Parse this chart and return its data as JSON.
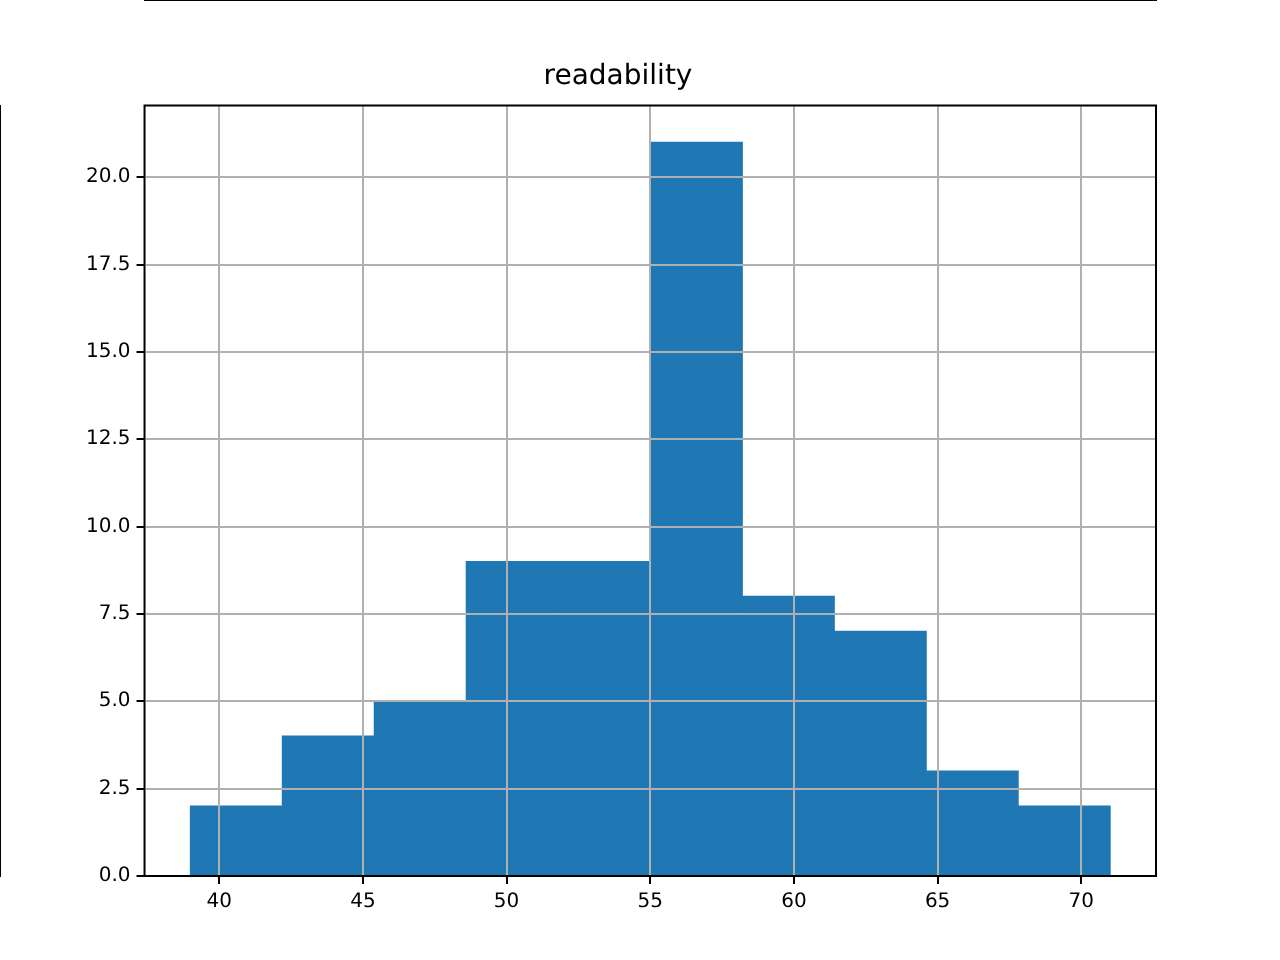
{
  "chart_data": {
    "type": "histogram",
    "title": "readability",
    "bins": [
      39,
      42.2,
      45.4,
      48.6,
      51.8,
      55,
      58.2,
      61.4,
      64.6,
      67.8,
      71
    ],
    "values": [
      2,
      4,
      5,
      9,
      9,
      21,
      8,
      7,
      3,
      2
    ],
    "color": "#1f77b4",
    "xlim": [
      37.4,
      72.6
    ],
    "xticks": [
      40,
      45,
      50,
      55,
      60,
      65,
      70
    ],
    "ylim": [
      0,
      22.05
    ],
    "yticks": [
      {
        "value": 0,
        "label": "0.0"
      },
      {
        "value": 2.5,
        "label": "2.5"
      },
      {
        "value": 5,
        "label": "5.0"
      },
      {
        "value": 7.5,
        "label": "7.5"
      },
      {
        "value": 10,
        "label": "10.0"
      },
      {
        "value": 12.5,
        "label": "12.5"
      },
      {
        "value": 15,
        "label": "15.0"
      },
      {
        "value": 17.5,
        "label": "17.5"
      },
      {
        "value": 20,
        "label": "20.0"
      }
    ],
    "grid": true,
    "legend": false
  }
}
